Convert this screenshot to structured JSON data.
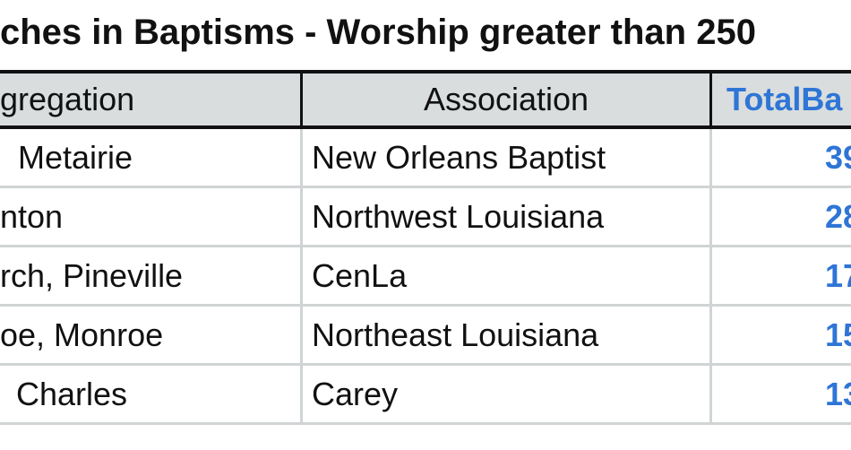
{
  "header": {
    "title": "ches in Baptisms - Worship greater than 250"
  },
  "table": {
    "columns": [
      "gregation",
      "Association",
      "TotalBa"
    ],
    "rows": [
      [
        "Metairie",
        "New Orleans Baptist",
        39
      ],
      [
        "nton",
        "Northwest Louisiana",
        28
      ],
      [
        "rch, Pineville",
        "CenLa",
        17
      ],
      [
        "oe, Monroe",
        "Northeast Louisiana",
        15
      ],
      [
        "Charles",
        "Carey",
        13
      ]
    ]
  }
}
